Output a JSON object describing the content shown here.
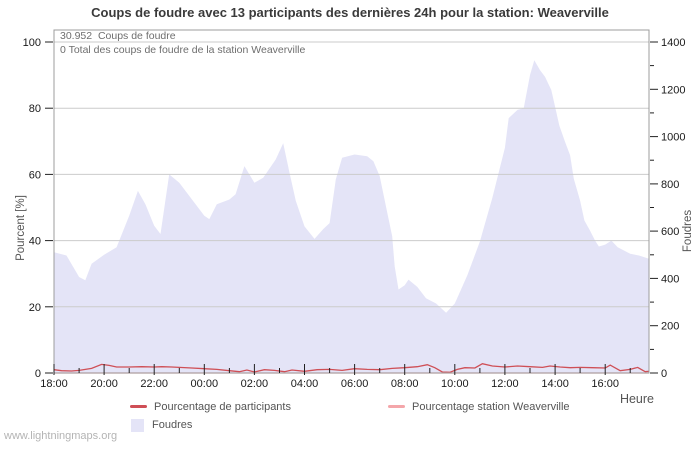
{
  "page": {
    "watermark": "www.lightningmaps.org"
  },
  "chart_data": {
    "type": "area",
    "title": "Coups de foudre avec 13 participants des dernières 24h pour la station: Weaverville",
    "annotations": [
      "30.952  Coups de foudre",
      "0 Total des coups de foudre de la station Weaverville"
    ],
    "x_axis": {
      "label": "Heure",
      "tick_labels": [
        "18:00",
        "20:00",
        "22:00",
        "00:00",
        "02:00",
        "04:00",
        "06:00",
        "08:00",
        "10:00",
        "12:00",
        "14:00",
        "16:00"
      ],
      "tick_hours": [
        0,
        2,
        4,
        6,
        8,
        10,
        12,
        14,
        16,
        18,
        20,
        22
      ],
      "hours_span": 23.75,
      "start_label": "18:00"
    },
    "y_left": {
      "label": "Pourcent  [%]",
      "range": [
        0,
        100
      ],
      "ticks": [
        0,
        20,
        40,
        60,
        80,
        100
      ]
    },
    "y_right": {
      "label": "Foudres",
      "range": [
        0,
        1400
      ],
      "ticks": [
        0,
        200,
        400,
        600,
        800,
        1000,
        1200,
        1400
      ],
      "minor_ticks": [
        100,
        300,
        500,
        700,
        900,
        1100,
        1300
      ]
    },
    "legend": [
      {
        "label": "Pourcentage de participants",
        "color": "#cf4f56",
        "type": "line"
      },
      {
        "label": "Pourcentage station Weaverville",
        "color": "#f4a6aa",
        "type": "line"
      },
      {
        "label": "Foudres",
        "color": "#e4e4f7",
        "type": "area"
      }
    ],
    "series": [
      {
        "name": "Foudres",
        "type": "area",
        "axis": "right",
        "color": "#e4e4f7",
        "points": [
          [
            0,
            511
          ],
          [
            0.5,
            497
          ],
          [
            1,
            406
          ],
          [
            1.25,
            392
          ],
          [
            1.5,
            462
          ],
          [
            2,
            500
          ],
          [
            2.5,
            532
          ],
          [
            3,
            665
          ],
          [
            3.35,
            770
          ],
          [
            3.65,
            714
          ],
          [
            4,
            623
          ],
          [
            4.25,
            588
          ],
          [
            4.6,
            840
          ],
          [
            5,
            805
          ],
          [
            5.5,
            735
          ],
          [
            6,
            665
          ],
          [
            6.2,
            651
          ],
          [
            6.5,
            714
          ],
          [
            7,
            734
          ],
          [
            7.25,
            756
          ],
          [
            7.6,
            875
          ],
          [
            8,
            805
          ],
          [
            8.35,
            826
          ],
          [
            8.85,
            903
          ],
          [
            9.15,
            972
          ],
          [
            9.4,
            847
          ],
          [
            9.65,
            728
          ],
          [
            10,
            620
          ],
          [
            10.4,
            567
          ],
          [
            10.75,
            609
          ],
          [
            11,
            634
          ],
          [
            11.25,
            819
          ],
          [
            11.5,
            910
          ],
          [
            12,
            924
          ],
          [
            12.5,
            917
          ],
          [
            12.75,
            896
          ],
          [
            13,
            833
          ],
          [
            13.25,
            706
          ],
          [
            13.5,
            578
          ],
          [
            13.6,
            451
          ],
          [
            13.75,
            353
          ],
          [
            14,
            371
          ],
          [
            14.15,
            395
          ],
          [
            14.5,
            364
          ],
          [
            14.85,
            316
          ],
          [
            15.25,
            294
          ],
          [
            15.65,
            255
          ],
          [
            16,
            294
          ],
          [
            16.5,
            414
          ],
          [
            17,
            556
          ],
          [
            17.5,
            742
          ],
          [
            18,
            952
          ],
          [
            18.15,
            1078
          ],
          [
            18.5,
            1113
          ],
          [
            18.75,
            1120
          ],
          [
            19,
            1260
          ],
          [
            19.17,
            1323
          ],
          [
            19.4,
            1281
          ],
          [
            19.6,
            1253
          ],
          [
            19.85,
            1197
          ],
          [
            20,
            1126
          ],
          [
            20.17,
            1047
          ],
          [
            20.4,
            977
          ],
          [
            20.6,
            921
          ],
          [
            20.75,
            822
          ],
          [
            21,
            729
          ],
          [
            21.17,
            645
          ],
          [
            21.4,
            602
          ],
          [
            21.6,
            560
          ],
          [
            21.75,
            535
          ],
          [
            22,
            543
          ],
          [
            22.25,
            560
          ],
          [
            22.5,
            532
          ],
          [
            23,
            504
          ],
          [
            23.35,
            497
          ],
          [
            23.75,
            483
          ]
        ]
      },
      {
        "name": "Pourcentage de participants",
        "type": "line",
        "axis": "left",
        "color": "#cf4f56",
        "points": [
          [
            0,
            1.0
          ],
          [
            0.3,
            0.7
          ],
          [
            0.7,
            0.6
          ],
          [
            1,
            0.8
          ],
          [
            1.5,
            1.4
          ],
          [
            1.9,
            2.6
          ],
          [
            2.2,
            2.3
          ],
          [
            2.5,
            1.8
          ],
          [
            3,
            1.8
          ],
          [
            3.5,
            1.9
          ],
          [
            4,
            1.8
          ],
          [
            4.3,
            1.9
          ],
          [
            4.7,
            1.8
          ],
          [
            5,
            1.7
          ],
          [
            5.5,
            1.5
          ],
          [
            6,
            1.3
          ],
          [
            6.5,
            1.1
          ],
          [
            7,
            0.7
          ],
          [
            7.4,
            0.4
          ],
          [
            7.7,
            0.9
          ],
          [
            8,
            0.3
          ],
          [
            8.4,
            1.0
          ],
          [
            8.8,
            0.8
          ],
          [
            9.2,
            0.4
          ],
          [
            9.5,
            0.9
          ],
          [
            10,
            0.5
          ],
          [
            10.5,
            1.0
          ],
          [
            11,
            1.1
          ],
          [
            11.5,
            0.8
          ],
          [
            12,
            1.3
          ],
          [
            12.5,
            1.1
          ],
          [
            13,
            1.0
          ],
          [
            13.5,
            1.4
          ],
          [
            14,
            1.6
          ],
          [
            14.5,
            1.9
          ],
          [
            14.9,
            2.5
          ],
          [
            15.2,
            1.6
          ],
          [
            15.5,
            0.3
          ],
          [
            15.8,
            0.2
          ],
          [
            16.1,
            1.1
          ],
          [
            16.4,
            1.6
          ],
          [
            16.8,
            1.5
          ],
          [
            17.1,
            2.8
          ],
          [
            17.5,
            2.1
          ],
          [
            18,
            1.8
          ],
          [
            18.5,
            2.1
          ],
          [
            19,
            1.9
          ],
          [
            19.5,
            1.7
          ],
          [
            19.8,
            2.1
          ],
          [
            20.2,
            1.8
          ],
          [
            20.6,
            1.6
          ],
          [
            21,
            1.7
          ],
          [
            21.5,
            1.6
          ],
          [
            22,
            1.5
          ],
          [
            22.2,
            2.4
          ],
          [
            22.6,
            0.7
          ],
          [
            23,
            1.1
          ],
          [
            23.3,
            1.7
          ],
          [
            23.6,
            0.4
          ],
          [
            23.75,
            0.5
          ]
        ]
      },
      {
        "name": "Pourcentage station Weaverville",
        "type": "line",
        "axis": "left",
        "color": "#f4a6aa",
        "points": [
          [
            0,
            0
          ],
          [
            23.75,
            0
          ]
        ]
      }
    ]
  }
}
